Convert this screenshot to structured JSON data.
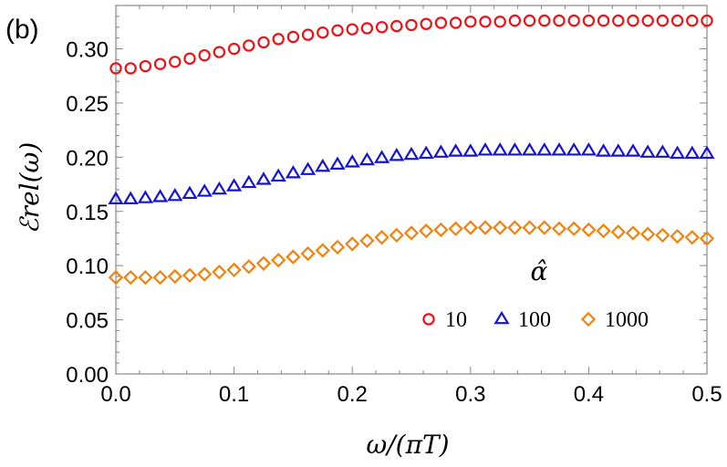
{
  "chart_data": {
    "type": "scatter",
    "panel_label": "(b)",
    "xlabel": "ω/(πT)",
    "ylabel": "ℰrel(ω)",
    "xlim": [
      0,
      0.5
    ],
    "ylim": [
      0,
      0.34
    ],
    "x_ticks": [
      "0.0",
      "0.1",
      "0.2",
      "0.3",
      "0.4",
      "0.5"
    ],
    "y_ticks": [
      "0.00",
      "0.05",
      "0.10",
      "0.15",
      "0.20",
      "0.25",
      "0.30"
    ],
    "grid": false,
    "legend": {
      "title": "α̂",
      "placement": "bottom-right"
    },
    "x": [
      0.0,
      0.0125,
      0.025,
      0.0375,
      0.05,
      0.0625,
      0.075,
      0.0875,
      0.1,
      0.1125,
      0.125,
      0.1375,
      0.15,
      0.1625,
      0.175,
      0.1875,
      0.2,
      0.2125,
      0.225,
      0.2375,
      0.25,
      0.2625,
      0.275,
      0.2875,
      0.3,
      0.3125,
      0.325,
      0.3375,
      0.35,
      0.3625,
      0.375,
      0.3875,
      0.4,
      0.4125,
      0.425,
      0.4375,
      0.45,
      0.4625,
      0.475,
      0.4875,
      0.5
    ],
    "series": [
      {
        "name": "10",
        "marker": "circle",
        "color": "#e8141a",
        "values": [
          0.282,
          0.282,
          0.284,
          0.286,
          0.288,
          0.291,
          0.294,
          0.297,
          0.3,
          0.303,
          0.306,
          0.309,
          0.311,
          0.313,
          0.315,
          0.317,
          0.318,
          0.319,
          0.32,
          0.321,
          0.322,
          0.323,
          0.324,
          0.324,
          0.325,
          0.325,
          0.325,
          0.326,
          0.326,
          0.326,
          0.326,
          0.326,
          0.326,
          0.326,
          0.326,
          0.326,
          0.326,
          0.326,
          0.326,
          0.326,
          0.326
        ]
      },
      {
        "name": "100",
        "marker": "triangle",
        "color": "#1414d2",
        "values": [
          0.161,
          0.161,
          0.162,
          0.163,
          0.164,
          0.166,
          0.168,
          0.17,
          0.173,
          0.176,
          0.179,
          0.182,
          0.185,
          0.188,
          0.191,
          0.193,
          0.195,
          0.197,
          0.199,
          0.201,
          0.202,
          0.203,
          0.204,
          0.205,
          0.205,
          0.206,
          0.206,
          0.206,
          0.206,
          0.206,
          0.206,
          0.206,
          0.206,
          0.205,
          0.205,
          0.205,
          0.204,
          0.204,
          0.203,
          0.203,
          0.203
        ]
      },
      {
        "name": "1000",
        "marker": "diamond",
        "color": "#f0820f",
        "values": [
          0.089,
          0.089,
          0.089,
          0.089,
          0.09,
          0.091,
          0.092,
          0.094,
          0.096,
          0.099,
          0.102,
          0.105,
          0.108,
          0.111,
          0.114,
          0.117,
          0.12,
          0.123,
          0.126,
          0.128,
          0.13,
          0.132,
          0.133,
          0.134,
          0.135,
          0.135,
          0.135,
          0.135,
          0.135,
          0.135,
          0.134,
          0.134,
          0.133,
          0.132,
          0.131,
          0.13,
          0.129,
          0.128,
          0.127,
          0.126,
          0.125
        ]
      }
    ]
  }
}
